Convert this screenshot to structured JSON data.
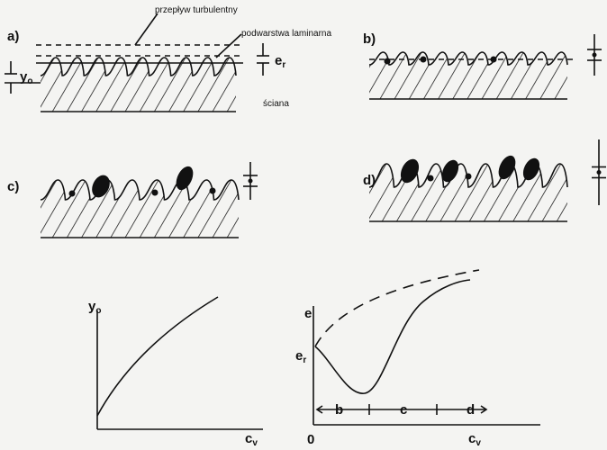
{
  "panels": [
    {
      "label": "a)"
    },
    {
      "label": "b)"
    },
    {
      "label": "c)"
    },
    {
      "label": "d)"
    }
  ],
  "annotations": {
    "turbulent": "przepływ turbulentny",
    "laminar": "podwarstwa laminarna",
    "wall": "ściana",
    "y0": {
      "symbol": "y",
      "subscript": "o"
    },
    "er": {
      "symbol": "e",
      "subscript": "r"
    }
  },
  "graph_left": {
    "y_axis": {
      "symbol": "y",
      "subscript": "o"
    },
    "x_axis": {
      "symbol": "c",
      "subscript": "v"
    }
  },
  "graph_right": {
    "y_axis": "e",
    "y_marker": {
      "symbol": "e",
      "subscript": "r"
    },
    "x_axis": {
      "symbol": "c",
      "subscript": "v"
    },
    "origin": "0",
    "regions": [
      "b",
      "c",
      "d"
    ]
  }
}
